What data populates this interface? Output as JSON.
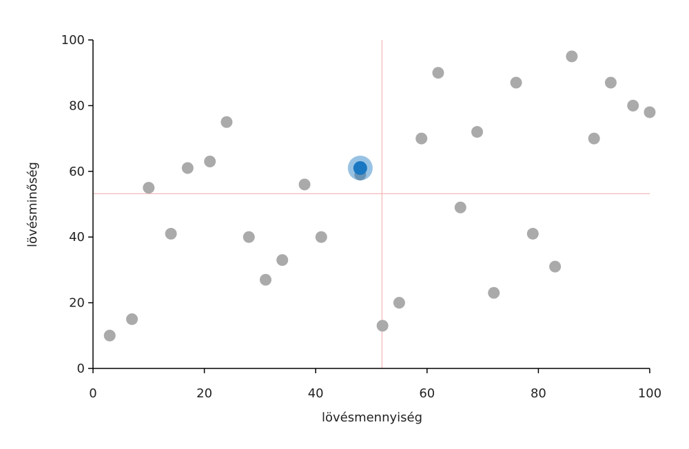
{
  "chart_data": {
    "type": "scatter",
    "x_label": "lövésmennyiség",
    "y_label": "lövésminőség",
    "xlim": [
      0,
      100
    ],
    "ylim": [
      0,
      100
    ],
    "xticks": [
      0,
      20,
      40,
      60,
      80,
      100
    ],
    "yticks": [
      0,
      20,
      40,
      60,
      80,
      100
    ],
    "reference_lines": {
      "x": 51.9,
      "y": 53.2,
      "color": "#f4a6a6"
    },
    "series": [
      {
        "color": "#aaaaaa",
        "x": [
          3,
          7,
          10,
          14,
          17,
          21,
          24,
          28,
          31,
          34,
          38,
          41,
          48,
          52,
          55,
          59,
          62,
          66,
          69,
          72,
          76,
          79,
          83,
          86,
          90,
          93,
          97,
          100
        ],
        "values": [
          10,
          15,
          55,
          41,
          61,
          63,
          75,
          40,
          27,
          33,
          56,
          40,
          59,
          13,
          20,
          70,
          90,
          49,
          72,
          23,
          87,
          41,
          31,
          95,
          70,
          87,
          80,
          78
        ]
      },
      {
        "color": "#1a78c2",
        "highlight": true,
        "x": [
          48
        ],
        "values": [
          61
        ]
      }
    ]
  }
}
